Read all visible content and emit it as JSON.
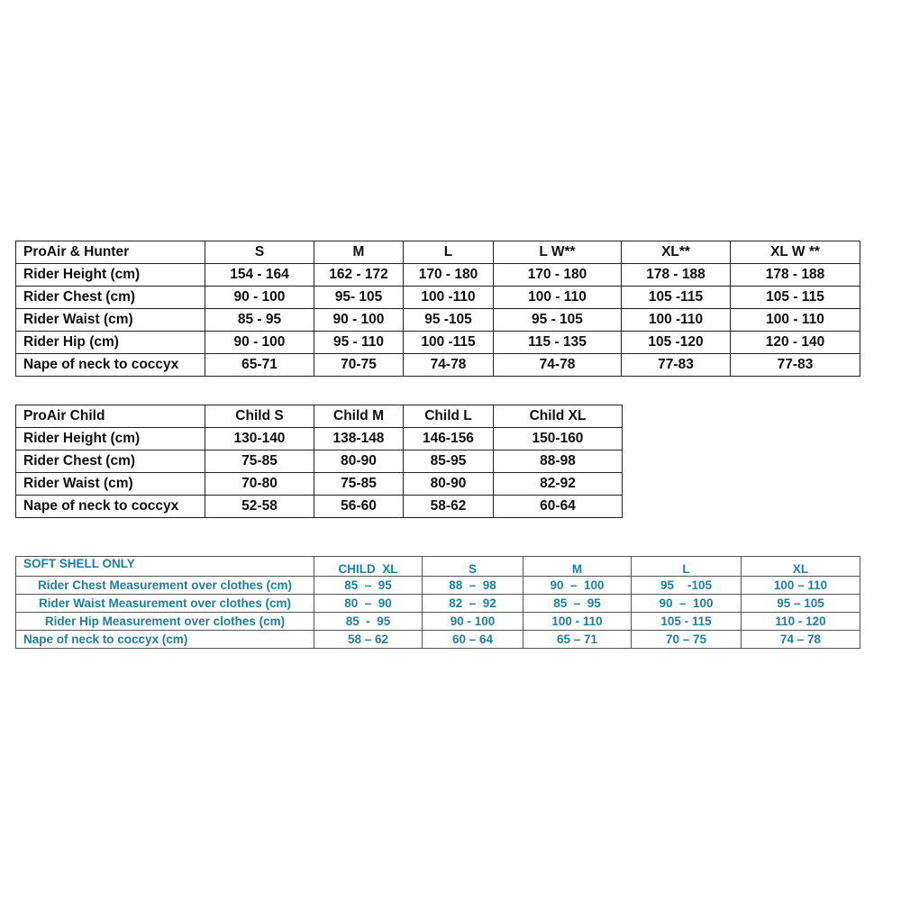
{
  "tables": [
    {
      "header": [
        "ProAir & Hunter",
        "S",
        "M",
        "L",
        "L W**",
        "XL**",
        "XL W **"
      ],
      "rows": [
        [
          "Rider Height (cm)",
          "154 - 164",
          "162 - 172",
          "170 - 180",
          "170 - 180",
          "178 - 188",
          "178 - 188"
        ],
        [
          "Rider Chest (cm)",
          "90 - 100",
          "95- 105",
          "100 -110",
          "100 - 110",
          "105 -115",
          "105 - 115"
        ],
        [
          "Rider Waist (cm)",
          "85 - 95",
          "90 - 100",
          "95 -105",
          "95 - 105",
          "100 -110",
          "100 - 110"
        ],
        [
          "Rider Hip (cm)",
          "90 - 100",
          "95 - 110",
          "100 -115",
          "115 - 135",
          "105 -120",
          "120 - 140"
        ],
        [
          "Nape of neck to coccyx",
          "65-71",
          "70-75",
          "74-78",
          "74-78",
          "77-83",
          "77-83"
        ]
      ]
    },
    {
      "header": [
        "ProAir Child",
        "Child S",
        "Child M",
        "Child L",
        "Child XL"
      ],
      "rows": [
        [
          "Rider Height (cm)",
          "130-140",
          "138-148",
          "146-156",
          "150-160"
        ],
        [
          "Rider Chest (cm)",
          "75-85",
          "80-90",
          "85-95",
          "88-98"
        ],
        [
          "Rider Waist (cm)",
          "70-80",
          "75-85",
          "80-90",
          "82-92"
        ],
        [
          "Nape of neck to coccyx",
          "52-58",
          "56-60",
          "58-62",
          "60-64"
        ]
      ]
    },
    {
      "header": [
        "SOFT SHELL ONLY",
        "CHILD  XL",
        "S",
        "M",
        "L",
        "XL"
      ],
      "rows": [
        [
          "Rider Chest Measurement over clothes (cm)",
          "85  –  95",
          "88  –  98",
          "90  –  100",
          "95    -105",
          "100 – 110"
        ],
        [
          "Rider Waist Measurement over clothes (cm)",
          "80  –  90",
          "82  –  92",
          "85  –  95",
          "90  –  100",
          "95 – 105"
        ],
        [
          "Rider Hip Measurement over clothes (cm)",
          "85  -  95",
          "90 - 100",
          "100 - 110",
          "105 - 115",
          "110 - 120"
        ],
        [
          "Nape of neck to coccyx (cm)",
          "58 – 62",
          "60 – 64",
          "65 – 71",
          "70 – 75",
          "74 – 78"
        ]
      ],
      "text_color": "#1f7fa0"
    }
  ]
}
